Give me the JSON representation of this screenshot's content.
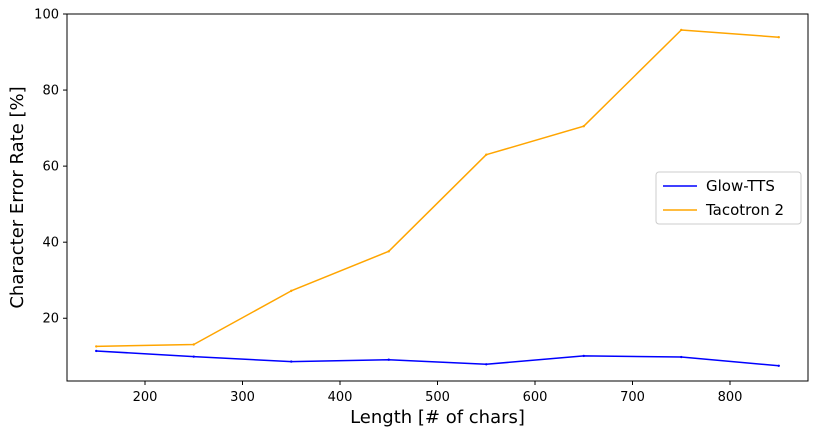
{
  "chart_data": {
    "type": "line",
    "xlabel": "Length [# of chars]",
    "ylabel": "Character Error Rate [%]",
    "xlim": [
      120,
      880
    ],
    "ylim": [
      3.5,
      100
    ],
    "xticks": [
      200,
      300,
      400,
      500,
      600,
      700,
      800
    ],
    "yticks": [
      20,
      40,
      60,
      80,
      100
    ],
    "grid": false,
    "legend": "center-right",
    "x": [
      150,
      250,
      350,
      450,
      550,
      650,
      750,
      850
    ],
    "series": [
      {
        "name": "Glow-TTS",
        "color": "#0000ff",
        "values": [
          11.4,
          9.9,
          8.6,
          9.1,
          7.9,
          10.1,
          9.8,
          7.5
        ]
      },
      {
        "name": "Tacotron 2",
        "color": "#ffa500",
        "values": [
          12.6,
          13.1,
          27.2,
          37.6,
          63.0,
          70.5,
          95.8,
          93.9
        ]
      }
    ]
  }
}
